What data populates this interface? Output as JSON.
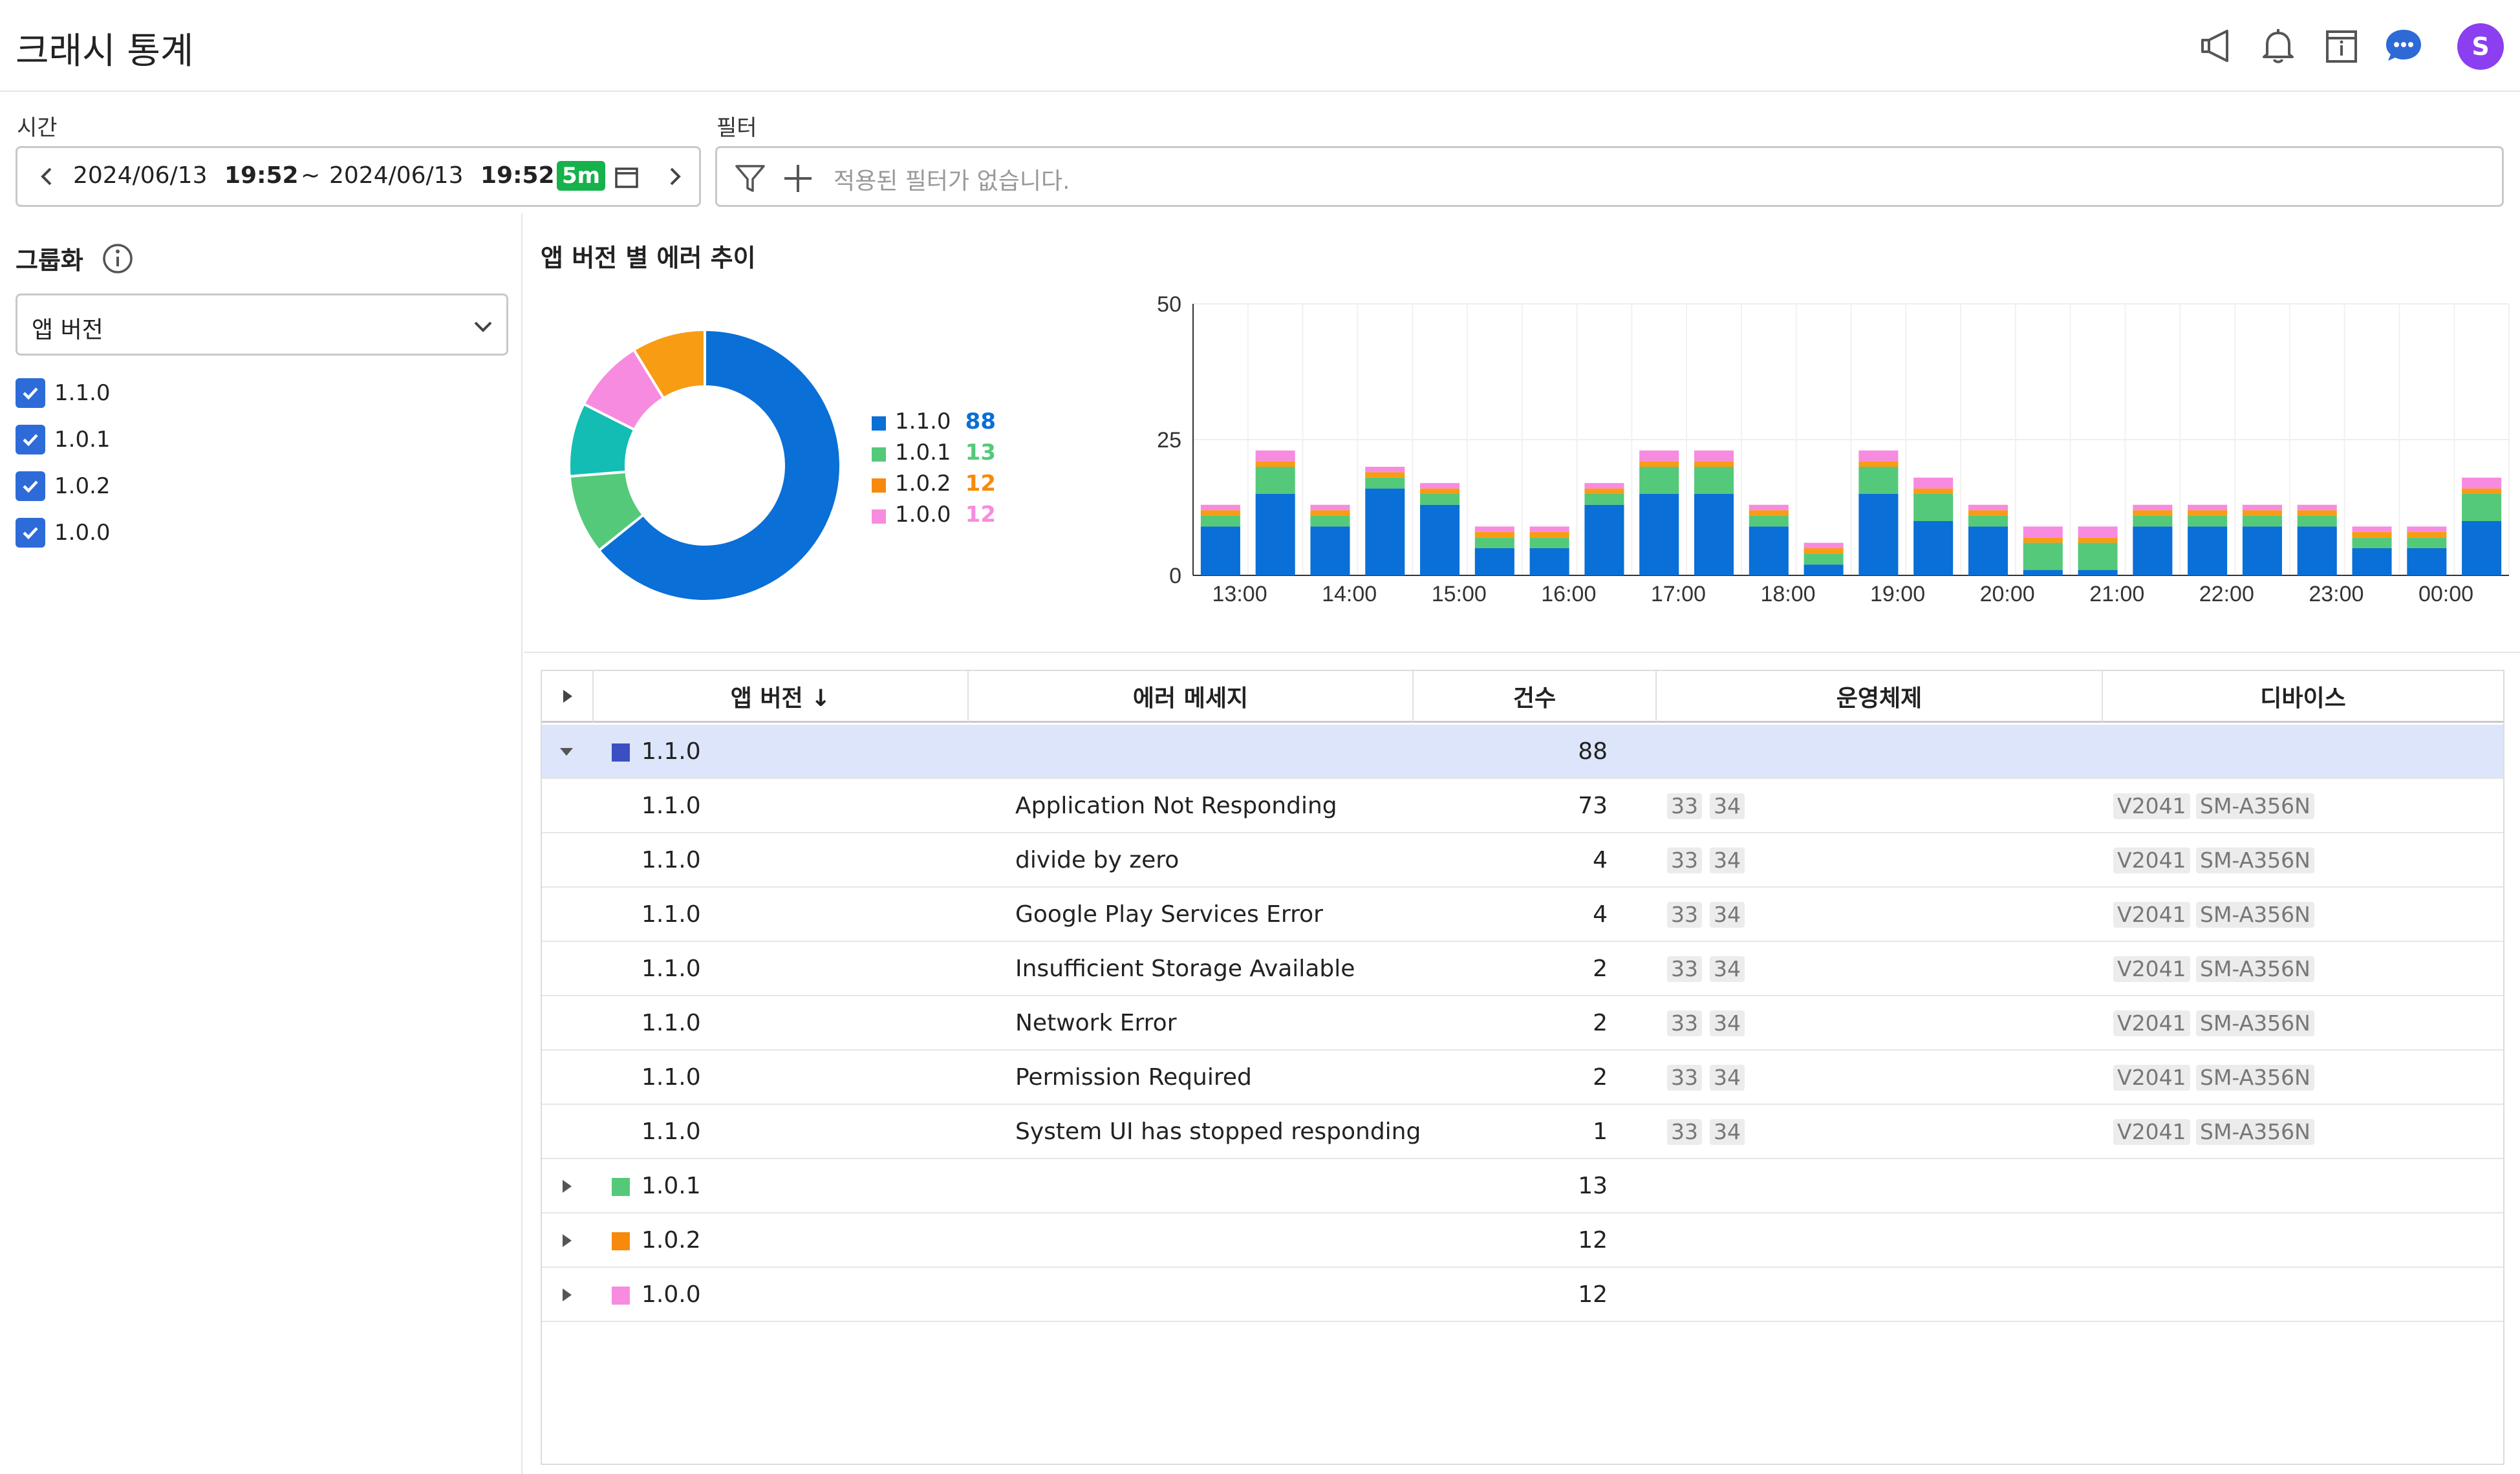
{
  "header": {
    "title": "크래시 통계",
    "avatar_letter": "S",
    "icons": [
      "megaphone-icon",
      "bell-icon",
      "calendar-info-icon",
      "chat-icon"
    ]
  },
  "time": {
    "label": "시간",
    "start_date": "2024/06/13",
    "start_time": "19:52",
    "separator": "~",
    "end_date": "2024/06/13",
    "end_time": "19:52",
    "interval": "5m"
  },
  "filter": {
    "label": "필터",
    "placeholder": "적용된 필터가 없습니다."
  },
  "grouping": {
    "label": "그룹화",
    "selected": "앱 버전",
    "options": [
      {
        "label": "1.1.0",
        "checked": true
      },
      {
        "label": "1.0.1",
        "checked": true
      },
      {
        "label": "1.0.2",
        "checked": true
      },
      {
        "label": "1.0.0",
        "checked": true
      }
    ]
  },
  "chart_section": {
    "title": "앱 버전 별 에러 추이"
  },
  "colors": {
    "v110": "#0a6fd6",
    "v101": "#55c97a",
    "v102": "#f89c14",
    "v100": "#f78be0",
    "donut_teal": "#13bdb4",
    "accent": "#2d6bd8",
    "selected_row": "#dde5fb"
  },
  "chart_data": [
    {
      "type": "pie",
      "categories": [
        "1.1.0",
        "1.0.1",
        "1.0.2",
        "1.0.0"
      ],
      "values": [
        88,
        13,
        12,
        12
      ]
    },
    {
      "type": "bar",
      "stacked": true,
      "ylim": [
        0,
        50
      ],
      "yticks": [
        0,
        25,
        50
      ],
      "xtick_labels": [
        "13:00",
        "14:00",
        "15:00",
        "16:00",
        "17:00",
        "18:00",
        "19:00",
        "20:00",
        "21:00",
        "22:00",
        "23:00",
        "00:00"
      ],
      "series": [
        {
          "name": "1.1.0",
          "values": [
            9,
            15,
            9,
            16,
            13,
            5,
            5,
            13,
            15,
            15,
            9,
            2,
            15,
            10,
            9,
            1,
            1,
            9,
            9,
            9,
            9,
            5,
            5,
            10
          ]
        },
        {
          "name": "1.0.1",
          "values": [
            2,
            5,
            2,
            2,
            2,
            2,
            2,
            2,
            5,
            5,
            2,
            2,
            5,
            5,
            2,
            5,
            5,
            2,
            2,
            2,
            2,
            2,
            2,
            5
          ]
        },
        {
          "name": "1.0.2",
          "values": [
            1,
            1,
            1,
            1,
            1,
            1,
            1,
            1,
            1,
            1,
            1,
            1,
            1,
            1,
            1,
            1,
            1,
            1,
            1,
            1,
            1,
            1,
            1,
            1
          ]
        },
        {
          "name": "1.0.0",
          "values": [
            1,
            2,
            1,
            1,
            1,
            1,
            1,
            1,
            2,
            2,
            1,
            1,
            2,
            2,
            1,
            2,
            2,
            1,
            1,
            1,
            1,
            1,
            1,
            2
          ]
        }
      ]
    }
  ],
  "table": {
    "headers": [
      "앱 버전 ↓",
      "에러 메세지",
      "건수",
      "운영체제",
      "디바이스"
    ],
    "groups": [
      {
        "version": "1.1.0",
        "count": "88",
        "expanded": true,
        "color": "#3c4fc0",
        "rows": [
          {
            "version": "1.1.0",
            "message": "Application Not Responding",
            "count": "73",
            "os": [
              "33",
              "34"
            ],
            "devices": [
              "V2041",
              "SM-A356N"
            ]
          },
          {
            "version": "1.1.0",
            "message": "divide by zero",
            "count": "4",
            "os": [
              "33",
              "34"
            ],
            "devices": [
              "V2041",
              "SM-A356N"
            ]
          },
          {
            "version": "1.1.0",
            "message": "Google Play Services Error",
            "count": "4",
            "os": [
              "33",
              "34"
            ],
            "devices": [
              "V2041",
              "SM-A356N"
            ]
          },
          {
            "version": "1.1.0",
            "message": "Insufficient Storage Available",
            "count": "2",
            "os": [
              "33",
              "34"
            ],
            "devices": [
              "V2041",
              "SM-A356N"
            ]
          },
          {
            "version": "1.1.0",
            "message": "Network Error",
            "count": "2",
            "os": [
              "33",
              "34"
            ],
            "devices": [
              "V2041",
              "SM-A356N"
            ]
          },
          {
            "version": "1.1.0",
            "message": "Permission Required",
            "count": "2",
            "os": [
              "33",
              "34"
            ],
            "devices": [
              "V2041",
              "SM-A356N"
            ]
          },
          {
            "version": "1.1.0",
            "message": "System UI has stopped responding",
            "count": "1",
            "os": [
              "33",
              "34"
            ],
            "devices": [
              "V2041",
              "SM-A356N"
            ]
          }
        ]
      },
      {
        "version": "1.0.1",
        "count": "13",
        "expanded": false,
        "color": "#55c97a",
        "rows": []
      },
      {
        "version": "1.0.2",
        "count": "12",
        "expanded": false,
        "color": "#f78a0c",
        "rows": []
      },
      {
        "version": "1.0.0",
        "count": "12",
        "expanded": false,
        "color": "#f78be0",
        "rows": []
      }
    ]
  }
}
